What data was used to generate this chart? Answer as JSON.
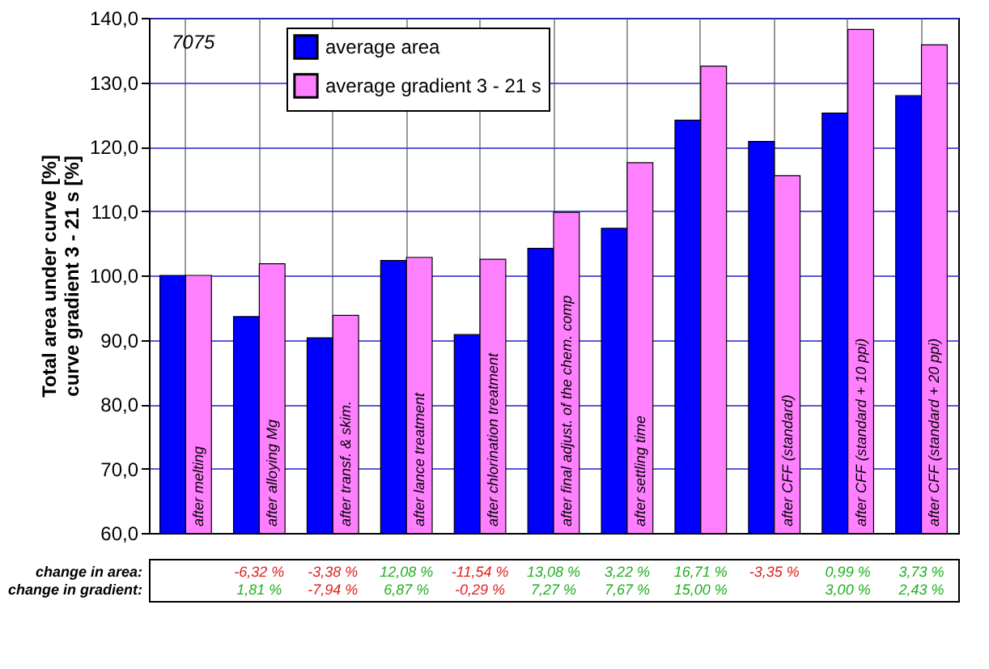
{
  "chart_data": [
    {
      "type": "bar",
      "ylabel": "Total area under curve [%]\ncurve gradient 3 - 21 s [%]",
      "categories": [
        "after melting",
        "after alloying Mg",
        "after transf. & skim.",
        "after lance treatment",
        "after chlorination treatment",
        "after final adjust. of the chem. comp",
        "after settling time",
        null,
        "after CFF (standard)",
        "after CFF (standard + 10 ppi)",
        "after CFF (standard + 20 ppi)"
      ],
      "series": [
        {
          "name": "average area",
          "color": "#0000ff",
          "values": [
            100.0,
            93.6,
            90.3,
            102.3,
            90.8,
            104.2,
            107.3,
            124.1,
            120.8,
            125.2,
            127.9
          ]
        },
        {
          "name": "average gradient 3 - 21 s",
          "color": "#ff80ff",
          "values": [
            100.0,
            101.8,
            93.8,
            102.8,
            102.5,
            109.8,
            117.5,
            132.5,
            115.5,
            138.2,
            135.8
          ]
        }
      ],
      "ylim": [
        60,
        140
      ],
      "yticks": [
        {
          "value": 60,
          "label": "60,0"
        },
        {
          "value": 70,
          "label": "70,0"
        },
        {
          "value": 80,
          "label": "80,0"
        },
        {
          "value": 90,
          "label": "90,0"
        },
        {
          "value": 100,
          "label": "100,0"
        },
        {
          "value": 110,
          "label": "110,0"
        },
        {
          "value": 120,
          "label": "120,0"
        },
        {
          "value": 130,
          "label": "130,0"
        },
        {
          "value": 140,
          "label": "140,0"
        }
      ],
      "grid": true,
      "legend": "top left",
      "tick_labels": "y",
      "annotations": [
        "7075"
      ]
    },
    {
      "type": "other",
      "annotations": [
        "change in area:",
        "-6,32 %",
        "-3,38 %",
        "12,08 %",
        "-11,54 %",
        "13,08 %",
        "3,22 %",
        "16,71 %",
        "-3,35 %",
        "0,99 %",
        "3,73 %",
        "change in gradient:",
        "1,81 %",
        "-7,94 %",
        "6,87 %",
        "-0,29 %",
        "7,27 %",
        "7,67 %",
        "15,00 %",
        null,
        "3,00 %",
        "2,43 %"
      ]
    }
  ]
}
